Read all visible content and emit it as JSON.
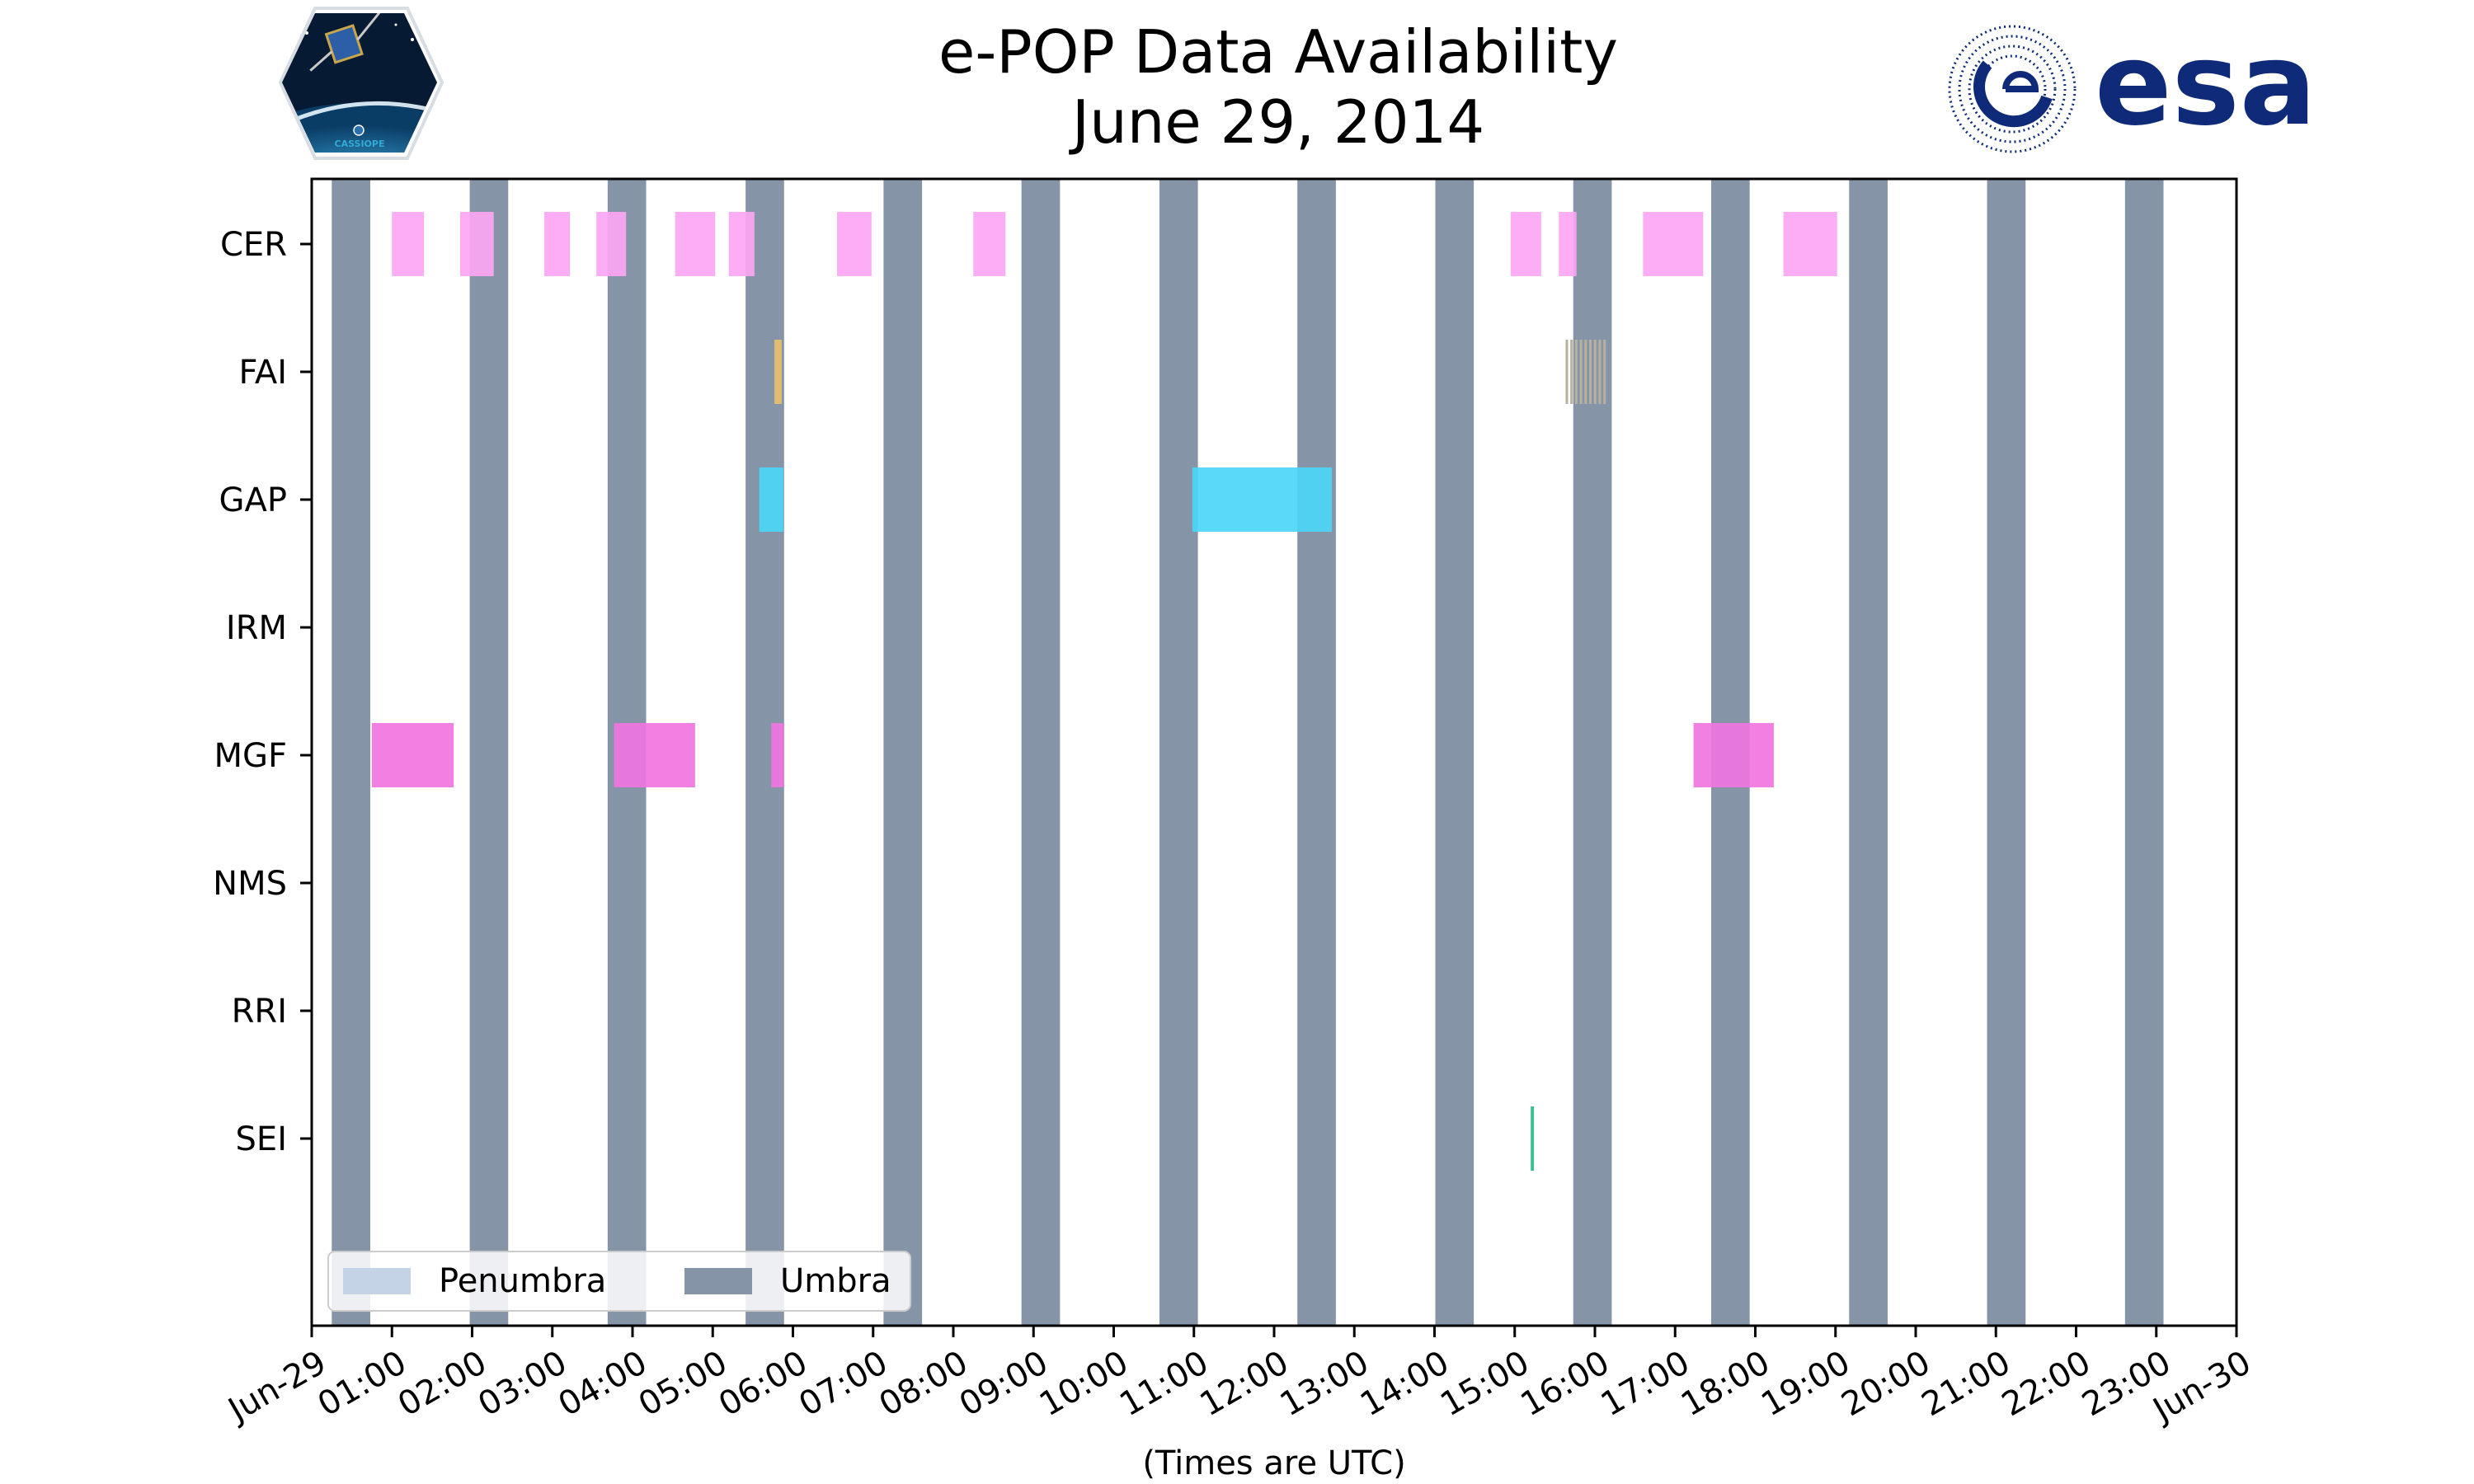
{
  "chart_data": {
    "type": "timeline",
    "title": "e-POP Data Availability",
    "subtitle": "June 29, 2014",
    "xlabel": "(Times are UTC)",
    "x_unit": "hours UTC",
    "xlim": [
      0,
      24
    ],
    "x_ticks": [
      "Jun-29",
      "01:00",
      "02:00",
      "03:00",
      "04:00",
      "05:00",
      "06:00",
      "07:00",
      "08:00",
      "09:00",
      "10:00",
      "11:00",
      "12:00",
      "13:00",
      "14:00",
      "15:00",
      "16:00",
      "17:00",
      "18:00",
      "19:00",
      "20:00",
      "21:00",
      "22:00",
      "23:00",
      "Jun-30"
    ],
    "categories": [
      "CER",
      "FAI",
      "GAP",
      "IRM",
      "MGF",
      "NMS",
      "RRI",
      "SEI"
    ],
    "legend": [
      {
        "label": "Penumbra",
        "color": "#c5d3e6"
      },
      {
        "label": "Umbra",
        "color": "#8595a7"
      }
    ],
    "legend_position": "lower-left",
    "umbra_color": "#8595a7",
    "umbra_hours": [
      [
        0.25,
        0.73
      ],
      [
        1.97,
        2.45
      ],
      [
        3.69,
        4.17
      ],
      [
        5.41,
        5.89
      ],
      [
        7.13,
        7.61
      ],
      [
        8.85,
        9.33
      ],
      [
        10.57,
        11.05
      ],
      [
        12.29,
        12.77
      ],
      [
        14.01,
        14.49
      ],
      [
        15.73,
        16.21
      ],
      [
        17.45,
        17.93
      ],
      [
        19.17,
        19.65
      ],
      [
        20.89,
        21.37
      ],
      [
        22.61,
        23.09
      ]
    ],
    "series": [
      {
        "name": "CER",
        "color": "#fca6f2",
        "intervals": [
          [
            1.0,
            1.4
          ],
          [
            1.85,
            2.27
          ],
          [
            2.9,
            3.22
          ],
          [
            3.55,
            3.92
          ],
          [
            4.53,
            5.03
          ],
          [
            5.2,
            5.52
          ],
          [
            6.55,
            6.98
          ],
          [
            8.25,
            8.65
          ],
          [
            14.95,
            15.33
          ],
          [
            15.55,
            15.77
          ],
          [
            16.6,
            17.35
          ],
          [
            18.35,
            19.02
          ]
        ]
      },
      {
        "name": "FAI",
        "color": "#e9c06f",
        "intervals": [
          [
            5.77,
            5.86
          ]
        ]
      },
      {
        "name": "GAP",
        "color": "#4dd6f7",
        "intervals": [
          [
            5.58,
            5.88
          ],
          [
            10.98,
            12.72
          ]
        ]
      },
      {
        "name": "IRM",
        "color": "#8a8a8a",
        "intervals": []
      },
      {
        "name": "MGF",
        "color": "#f075e0",
        "intervals": [
          [
            0.75,
            1.77
          ],
          [
            3.77,
            4.78
          ],
          [
            5.73,
            5.89
          ],
          [
            17.23,
            18.23
          ]
        ]
      },
      {
        "name": "NMS",
        "color": "#8a8a8a",
        "intervals": []
      },
      {
        "name": "RRI",
        "color": "#8a8a8a",
        "intervals": []
      },
      {
        "name": "SEI",
        "color": "#2bb88a",
        "intervals": [
          [
            15.2,
            15.24
          ]
        ]
      }
    ],
    "striped": [
      {
        "row": "FAI",
        "from": 15.65,
        "to": 16.12,
        "color": "#b8b0a0",
        "stripe_count": 9
      }
    ],
    "grid": false
  },
  "logos": {
    "left": "cassiope-hexagon-logo",
    "left_text": "CASSIOPE",
    "right": "esa-logo",
    "right_text": "esa",
    "esa_color": "#0f2a78"
  }
}
